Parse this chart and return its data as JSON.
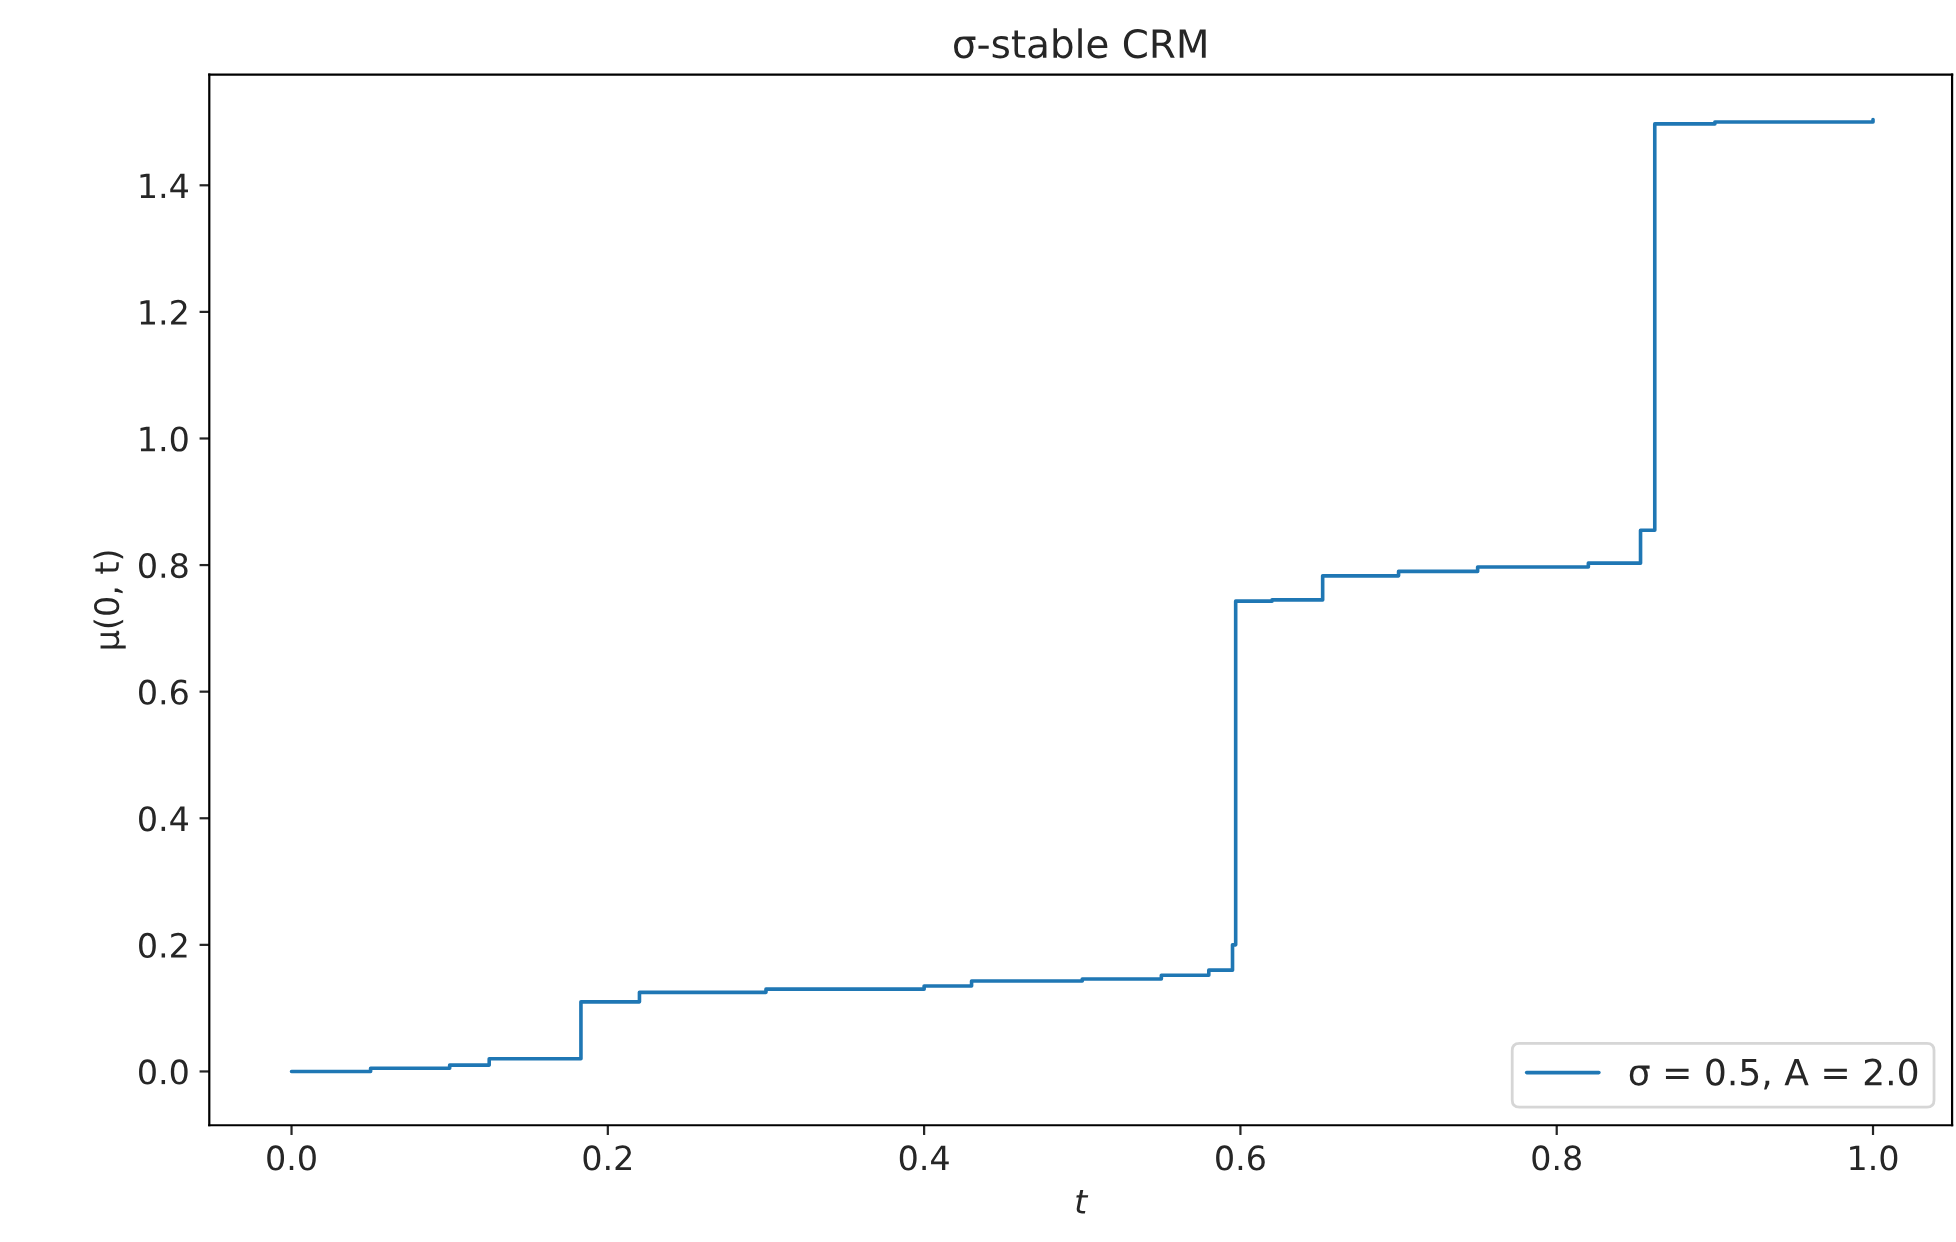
{
  "chart_data": {
    "type": "step",
    "title": "σ-stable CRM",
    "xlabel": "t",
    "ylabel": "μ(0, t)",
    "series": [
      {
        "name": "σ = 0.5, A = 2.0",
        "color": "#1f77b4",
        "x": [
          0,
          0.05,
          0.1,
          0.125,
          0.183,
          0.22,
          0.3,
          0.4,
          0.43,
          0.5,
          0.55,
          0.58,
          0.595,
          0.597,
          0.62,
          0.652,
          0.7,
          0.75,
          0.82,
          0.853,
          0.862,
          0.9,
          1.0
        ],
        "values": [
          0,
          0.005,
          0.01,
          0.02,
          0.11,
          0.125,
          0.13,
          0.135,
          0.143,
          0.146,
          0.152,
          0.16,
          0.2,
          0.743,
          0.745,
          0.783,
          0.79,
          0.797,
          0.803,
          0.855,
          1.497,
          1.5,
          1.504
        ]
      }
    ],
    "xlim": [
      -0.052,
      1.05
    ],
    "ylim": [
      -0.085,
      1.575
    ],
    "xticks": [
      {
        "value": 0,
        "label": "0.0"
      },
      0.2,
      0.4,
      0.6,
      0.8,
      {
        "value": 1,
        "label": "1.0"
      }
    ],
    "yticks": [
      {
        "value": 0,
        "label": "0.0"
      },
      0.2,
      0.4,
      0.6,
      0.8,
      {
        "value": 1,
        "label": "1.0"
      },
      1.2,
      1.4
    ],
    "legend": "bottom right",
    "grid": false
  }
}
